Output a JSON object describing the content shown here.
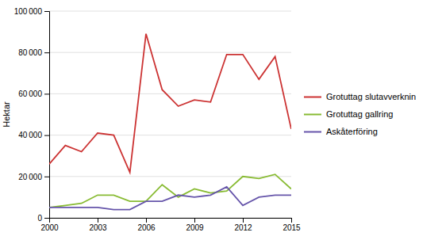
{
  "chart_data": {
    "type": "line",
    "ylabel": "Hektar",
    "x": [
      2000,
      2001,
      2002,
      2003,
      2004,
      2005,
      2006,
      2007,
      2008,
      2009,
      2010,
      2011,
      2012,
      2013,
      2014,
      2015
    ],
    "series": [
      {
        "name": "Grotuttag slutavverknin",
        "color": "#cc3333",
        "values": [
          26000,
          35000,
          32000,
          41000,
          40000,
          22000,
          89000,
          62000,
          54000,
          57000,
          56000,
          79000,
          79000,
          67000,
          78000,
          43000
        ]
      },
      {
        "name": "Grotuttag gallring",
        "color": "#88bb33",
        "values": [
          5000,
          6000,
          7000,
          11000,
          11000,
          8000,
          8000,
          16000,
          10000,
          14000,
          12000,
          13000,
          20000,
          19000,
          21000,
          14000
        ]
      },
      {
        "name": "Askåterföring",
        "color": "#6655aa",
        "values": [
          5000,
          5000,
          5000,
          5000,
          4000,
          4000,
          8000,
          8000,
          11000,
          10000,
          11000,
          15000,
          6000,
          10000,
          11000,
          11000
        ]
      }
    ],
    "xlim": [
      2000,
      2015
    ],
    "xticks": [
      2000,
      2003,
      2006,
      2009,
      2012,
      2015
    ],
    "ylim": [
      0,
      100000
    ],
    "yticks": [
      0,
      {
        "value": 20000,
        "label": "20 000"
      },
      {
        "value": 40000,
        "label": "40 000"
      },
      {
        "value": 60000,
        "label": "60 000"
      },
      {
        "value": 80000,
        "label": "80 000"
      },
      {
        "value": 100000,
        "label": "100 000"
      }
    ],
    "grid": true,
    "legend": "right"
  }
}
